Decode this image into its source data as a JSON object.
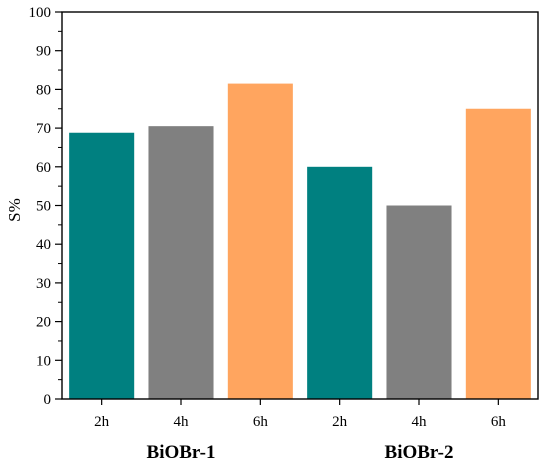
{
  "chart_data": {
    "type": "bar",
    "ylabel": "S%",
    "ylim": [
      0,
      100
    ],
    "yticks": [
      0,
      10,
      20,
      30,
      40,
      50,
      60,
      70,
      80,
      90,
      100
    ],
    "grid": false,
    "groups": [
      {
        "name": "BiOBr-1",
        "bars": [
          {
            "label": "2h",
            "value": 68.8,
            "color": "#008080"
          },
          {
            "label": "4h",
            "value": 70.5,
            "color": "#808080"
          },
          {
            "label": "6h",
            "value": 81.5,
            "color": "#FFA55F"
          }
        ]
      },
      {
        "name": "BiOBr-2",
        "bars": [
          {
            "label": "2h",
            "value": 60.0,
            "color": "#008080"
          },
          {
            "label": "4h",
            "value": 50.0,
            "color": "#808080"
          },
          {
            "label": "6h",
            "value": 75.0,
            "color": "#FFA55F"
          }
        ]
      }
    ]
  }
}
